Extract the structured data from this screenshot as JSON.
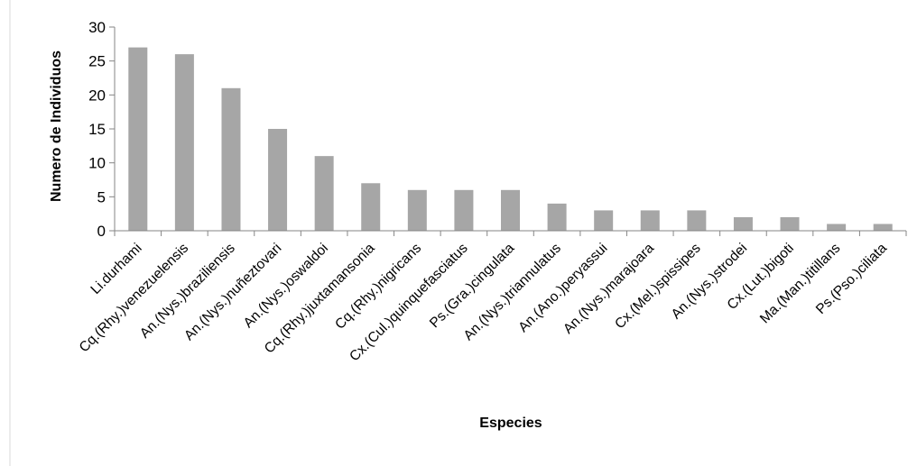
{
  "chart_data": {
    "type": "bar",
    "title": "",
    "xlabel": "Especies",
    "ylabel": "Numero de Individuos",
    "ylim": [
      0,
      30
    ],
    "yticks": [
      0,
      5,
      10,
      15,
      20,
      25,
      30
    ],
    "grid": false,
    "legend": "none",
    "bar_color": "#a6a6a6",
    "categories": [
      "Li.durhami",
      "Cq.(Rhy.)venezuelensis",
      "An.(Nys.)braziliensis",
      "An.(Nys.)nuñeztovari",
      "An.(Nys.)oswaldoi",
      "Cq.(Rhy.)juxtamansonia",
      "Cq.(Rhy.)nigricans",
      "Cx.(Cul.)quinquefasciatus",
      "Ps.(Gra.)cingulata",
      "An.(Nys.)triannulatus",
      "An.(Ano.)peryassui",
      "An.(Nys.)marajoara",
      "Cx.(Mel.)spissipes",
      "An.(Nys.)strodei",
      "Cx.(Lut.)bigoti",
      "Ma.(Man.)titillans",
      "Ps.(Pso.)ciliata"
    ],
    "values": [
      27,
      26,
      21,
      15,
      11,
      7,
      6,
      6,
      6,
      4,
      3,
      3,
      3,
      2,
      2,
      1,
      1
    ]
  }
}
